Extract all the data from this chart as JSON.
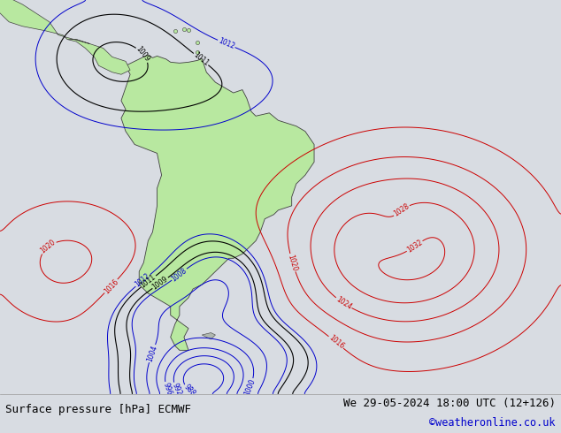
{
  "bottom_left_text": "Surface pressure [hPa] ECMWF",
  "bottom_right_text": "We 29-05-2024 18:00 UTC (12+126)",
  "bottom_right_text2": "©weatheronline.co.uk",
  "bg_color": "#e0e4e8",
  "ocean_color": "#d8dce2",
  "land_color": "#b8e8a0",
  "fig_width": 6.34,
  "fig_height": 4.9,
  "dpi": 100,
  "bottom_text_color": "#000000",
  "copyright_color": "#0000cc",
  "footer_bg": "#d8dce2",
  "label_fontsize": 9.0,
  "copyright_fontsize": 8.5
}
